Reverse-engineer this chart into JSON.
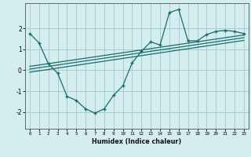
{
  "xlabel": "Humidex (Indice chaleur)",
  "background_color": "#d4eef0",
  "line_color": "#1a6b6b",
  "grid_color": "#a8cdd0",
  "xlim": [
    -0.5,
    23.5
  ],
  "ylim": [
    -2.8,
    3.2
  ],
  "xticks": [
    0,
    1,
    2,
    3,
    4,
    5,
    6,
    7,
    8,
    9,
    10,
    11,
    12,
    13,
    14,
    15,
    16,
    17,
    18,
    19,
    20,
    21,
    22,
    23
  ],
  "yticks": [
    -2,
    -1,
    0,
    1,
    2
  ],
  "main_x": [
    0,
    1,
    2,
    3,
    4,
    5,
    6,
    7,
    8,
    9,
    10,
    11,
    12,
    13,
    14,
    15,
    16,
    17,
    18,
    19,
    20,
    21,
    22,
    23
  ],
  "main_y": [
    1.75,
    1.3,
    0.3,
    -0.15,
    -1.25,
    -1.45,
    -1.85,
    -2.05,
    -1.85,
    -1.2,
    -0.75,
    0.35,
    0.9,
    1.35,
    1.2,
    2.75,
    2.9,
    1.4,
    1.4,
    1.7,
    1.85,
    1.9,
    1.85,
    1.75
  ],
  "trend1_x": [
    0,
    23
  ],
  "trend1_y": [
    0.05,
    1.55
  ],
  "trend2_x": [
    0,
    23
  ],
  "trend2_y": [
    0.18,
    1.68
  ],
  "trend3_x": [
    0,
    23
  ],
  "trend3_y": [
    -0.1,
    1.42
  ]
}
